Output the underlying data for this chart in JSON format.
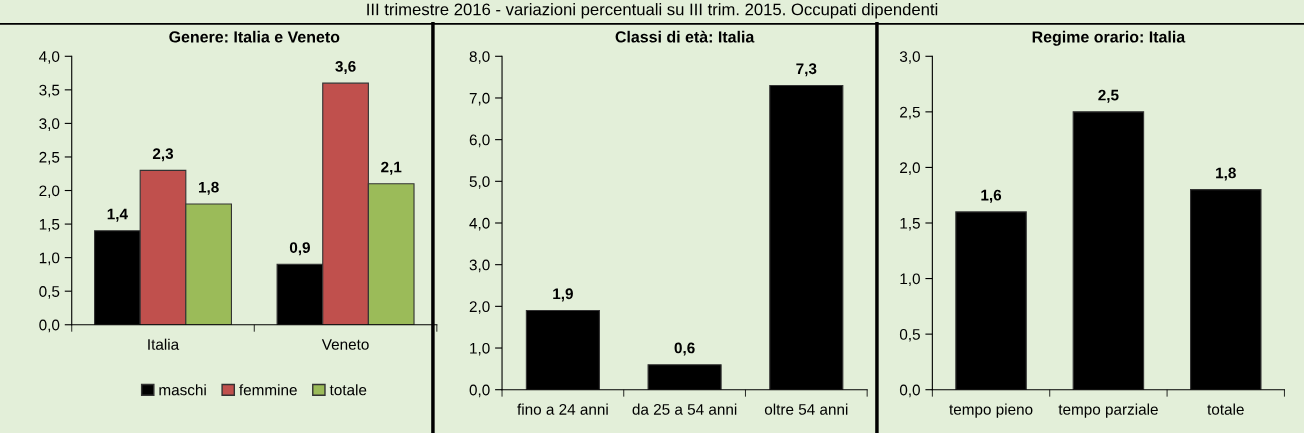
{
  "chart_data": [
    {
      "type": "bar",
      "title": "Genere: Italia e Veneto",
      "annotations": [
        "III trimestre 2016 - variazioni percentuali su III trim. 2015. Occupati dipendenti"
      ],
      "categories": [
        "Italia",
        "Veneto"
      ],
      "series": [
        {
          "name": "maschi",
          "color": "#000000",
          "values": [
            1.4,
            0.9
          ]
        },
        {
          "name": "femmine",
          "color": "#c0504d",
          "values": [
            2.3,
            3.6
          ]
        },
        {
          "name": "totale",
          "color": "#9bbb59",
          "values": [
            1.8,
            2.1
          ]
        }
      ],
      "ylim": [
        0,
        4
      ],
      "yticks": [
        {
          "value": 0,
          "label": "0,0"
        },
        {
          "value": 0.5,
          "label": "0,5"
        },
        {
          "value": 1,
          "label": "1,0"
        },
        {
          "value": 1.5,
          "label": "1,5"
        },
        {
          "value": 2,
          "label": "2,0"
        },
        {
          "value": 2.5,
          "label": "2,5"
        },
        {
          "value": 3,
          "label": "3,0"
        },
        {
          "value": 3.5,
          "label": "3,5"
        },
        {
          "value": 4,
          "label": "4,0"
        }
      ],
      "value_labels": [
        [
          "1,4",
          "0,9"
        ],
        [
          "2,3",
          "3,6"
        ],
        [
          "1,8",
          "2,1"
        ]
      ],
      "legend": "bottom",
      "grid": false
    },
    {
      "type": "bar",
      "title": "Classi di età: Italia",
      "categories": [
        "fino a 24 anni",
        "da 25 a 54 anni",
        "oltre 54 anni"
      ],
      "series": [
        {
          "color": "#000000",
          "values": [
            1.9,
            0.6,
            7.3
          ]
        }
      ],
      "ylim": [
        0,
        8
      ],
      "yticks": [
        {
          "value": 0,
          "label": "0,0"
        },
        {
          "value": 1,
          "label": "1,0"
        },
        {
          "value": 2,
          "label": "2,0"
        },
        {
          "value": 3,
          "label": "3,0"
        },
        {
          "value": 4,
          "label": "4,0"
        },
        {
          "value": 5,
          "label": "5,0"
        },
        {
          "value": 6,
          "label": "6,0"
        },
        {
          "value": 7,
          "label": "7,0"
        },
        {
          "value": 8,
          "label": "8,0"
        }
      ],
      "value_labels": [
        [
          "1,9",
          "0,6",
          "7,3"
        ]
      ],
      "grid": false
    },
    {
      "type": "bar",
      "title": "Regime orario: Italia",
      "categories": [
        "tempo pieno",
        "tempo parziale",
        "totale"
      ],
      "series": [
        {
          "color": "#000000",
          "values": [
            1.6,
            2.5,
            1.8
          ]
        }
      ],
      "ylim": [
        0,
        3
      ],
      "yticks": [
        {
          "value": 0,
          "label": "0,0"
        },
        {
          "value": 0.5,
          "label": "0,5"
        },
        {
          "value": 1,
          "label": "1,0"
        },
        {
          "value": 1.5,
          "label": "1,5"
        },
        {
          "value": 2,
          "label": "2,0"
        },
        {
          "value": 2.5,
          "label": "2,5"
        },
        {
          "value": 3,
          "label": "3,0"
        }
      ],
      "value_labels": [
        [
          "1,6",
          "2,5",
          "1,8"
        ]
      ],
      "grid": false
    }
  ]
}
